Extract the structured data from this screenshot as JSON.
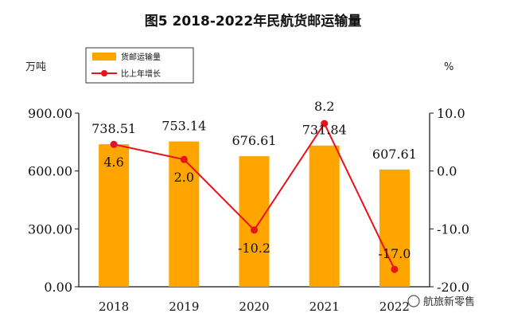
{
  "chart_data": {
    "type": "bar+line",
    "title": "图5  2018-2022年民航货邮运输量",
    "categories": [
      "2018",
      "2019",
      "2020",
      "2021",
      "2022"
    ],
    "series": [
      {
        "name": "货邮运输量",
        "type": "bar",
        "axis": "left",
        "values": [
          738.51,
          753.14,
          676.61,
          731.84,
          607.61
        ],
        "labels": [
          "738.51",
          "753.14",
          "676.61",
          "731.84",
          "607.61"
        ],
        "color": "#FFA500"
      },
      {
        "name": "比上年增长",
        "type": "line",
        "axis": "right",
        "values": [
          4.6,
          2.0,
          -10.2,
          8.2,
          -17.0
        ],
        "labels": [
          "4.6",
          "2.0",
          "-10.2",
          "8.2",
          "-17.0"
        ],
        "color": "#E8131A"
      }
    ],
    "yleft": {
      "label": "万吨",
      "min": 0,
      "max": 900,
      "ticks": [
        "0.00",
        "300.00",
        "600.00",
        "900.00"
      ]
    },
    "yright": {
      "label": "%",
      "min": -20,
      "max": 10,
      "ticks": [
        "-20.0",
        "-10.0",
        "0.0",
        "10.0"
      ]
    },
    "legend": "top-left",
    "grid": false
  },
  "watermark": "航旅新零售"
}
